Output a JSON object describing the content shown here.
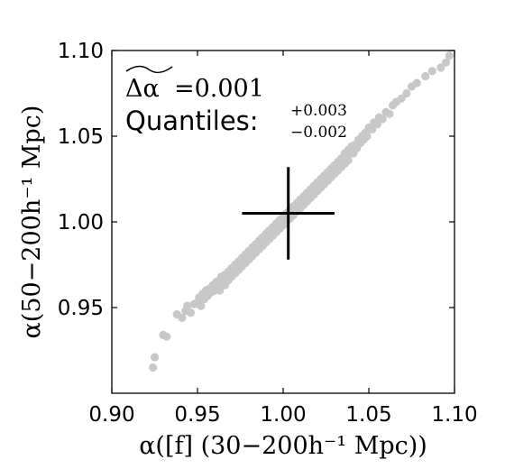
{
  "chart_data": {
    "type": "scatter",
    "xlabel": "α([f]  (30−200h⁻¹ Mpc))",
    "ylabel": "α(50−200h⁻¹ Mpc)",
    "xlim": [
      0.9,
      1.1
    ],
    "ylim": [
      0.9,
      1.1
    ],
    "x_ticks": [
      "0.90",
      "0.95",
      "1.00",
      "1.05",
      "1.10"
    ],
    "y_ticks": [
      "0.95",
      "1.00",
      "1.05",
      "1.10"
    ],
    "grid": false,
    "point_color": "#c8c8c8",
    "cross_color": "#000000",
    "annotation": {
      "line1_symbol": "Δα",
      "line1_value": "=0.001",
      "line2_label": "Quantiles:",
      "line2_upper": "+0.003",
      "line2_lower": "−0.002"
    },
    "cross": {
      "x": 1.003,
      "y": 1.005,
      "x_err_minus": 0.027,
      "x_err_plus": 0.027,
      "y_err_minus": 0.027,
      "y_err_plus": 0.027
    },
    "points": [
      [
        0.924,
        0.915
      ],
      [
        0.925,
        0.921
      ],
      [
        0.93,
        0.934
      ],
      [
        0.932,
        0.933
      ],
      [
        0.938,
        0.946
      ],
      [
        0.941,
        0.944
      ],
      [
        0.943,
        0.948
      ],
      [
        0.944,
        0.951
      ],
      [
        0.946,
        0.947
      ],
      [
        0.948,
        0.952
      ],
      [
        0.95,
        0.953
      ],
      [
        0.951,
        0.956
      ],
      [
        0.952,
        0.951
      ],
      [
        0.953,
        0.958
      ],
      [
        0.954,
        0.955
      ],
      [
        0.955,
        0.96
      ],
      [
        0.956,
        0.957
      ],
      [
        0.957,
        0.961
      ],
      [
        0.958,
        0.959
      ],
      [
        0.959,
        0.963
      ],
      [
        0.96,
        0.96
      ],
      [
        0.961,
        0.965
      ],
      [
        0.962,
        0.962
      ],
      [
        0.963,
        0.966
      ],
      [
        0.963,
        0.96
      ],
      [
        0.964,
        0.968
      ],
      [
        0.965,
        0.964
      ],
      [
        0.966,
        0.969
      ],
      [
        0.966,
        0.963
      ],
      [
        0.967,
        0.967
      ],
      [
        0.968,
        0.971
      ],
      [
        0.968,
        0.966
      ],
      [
        0.969,
        0.97
      ],
      [
        0.97,
        0.973
      ],
      [
        0.97,
        0.968
      ],
      [
        0.971,
        0.972
      ],
      [
        0.972,
        0.975
      ],
      [
        0.972,
        0.97
      ],
      [
        0.973,
        0.974
      ],
      [
        0.974,
        0.977
      ],
      [
        0.974,
        0.972
      ],
      [
        0.975,
        0.976
      ],
      [
        0.976,
        0.979
      ],
      [
        0.976,
        0.974
      ],
      [
        0.977,
        0.978
      ],
      [
        0.978,
        0.981
      ],
      [
        0.978,
        0.976
      ],
      [
        0.979,
        0.98
      ],
      [
        0.98,
        0.983
      ],
      [
        0.98,
        0.978
      ],
      [
        0.981,
        0.982
      ],
      [
        0.982,
        0.985
      ],
      [
        0.982,
        0.98
      ],
      [
        0.983,
        0.984
      ],
      [
        0.984,
        0.987
      ],
      [
        0.984,
        0.982
      ],
      [
        0.985,
        0.986
      ],
      [
        0.986,
        0.989
      ],
      [
        0.986,
        0.984
      ],
      [
        0.987,
        0.988
      ],
      [
        0.988,
        0.991
      ],
      [
        0.988,
        0.986
      ],
      [
        0.989,
        0.99
      ],
      [
        0.99,
        0.993
      ],
      [
        0.99,
        0.988
      ],
      [
        0.991,
        0.992
      ],
      [
        0.992,
        0.995
      ],
      [
        0.992,
        0.99
      ],
      [
        0.993,
        0.994
      ],
      [
        0.994,
        0.997
      ],
      [
        0.994,
        0.992
      ],
      [
        0.995,
        0.996
      ],
      [
        0.996,
        0.999
      ],
      [
        0.996,
        0.994
      ],
      [
        0.997,
        0.998
      ],
      [
        0.998,
        1.001
      ],
      [
        0.998,
        0.996
      ],
      [
        0.999,
        1.0
      ],
      [
        1.0,
        1.003
      ],
      [
        1.0,
        0.998
      ],
      [
        1.001,
        1.002
      ],
      [
        1.002,
        1.005
      ],
      [
        1.002,
        1.0
      ],
      [
        1.003,
        1.004
      ],
      [
        1.004,
        1.007
      ],
      [
        1.004,
        1.002
      ],
      [
        1.005,
        1.006
      ],
      [
        1.006,
        1.009
      ],
      [
        1.006,
        1.004
      ],
      [
        1.007,
        1.008
      ],
      [
        1.008,
        1.011
      ],
      [
        1.008,
        1.006
      ],
      [
        1.009,
        1.01
      ],
      [
        1.01,
        1.013
      ],
      [
        1.01,
        1.008
      ],
      [
        1.011,
        1.012
      ],
      [
        1.012,
        1.015
      ],
      [
        1.012,
        1.01
      ],
      [
        1.013,
        1.014
      ],
      [
        1.014,
        1.017
      ],
      [
        1.014,
        1.012
      ],
      [
        1.015,
        1.016
      ],
      [
        1.016,
        1.019
      ],
      [
        1.016,
        1.014
      ],
      [
        1.017,
        1.018
      ],
      [
        1.018,
        1.021
      ],
      [
        1.018,
        1.016
      ],
      [
        1.019,
        1.02
      ],
      [
        1.02,
        1.023
      ],
      [
        1.02,
        1.018
      ],
      [
        1.021,
        1.022
      ],
      [
        1.022,
        1.025
      ],
      [
        1.022,
        1.02
      ],
      [
        1.023,
        1.024
      ],
      [
        1.024,
        1.027
      ],
      [
        1.024,
        1.022
      ],
      [
        1.025,
        1.026
      ],
      [
        1.026,
        1.029
      ],
      [
        1.026,
        1.024
      ],
      [
        1.027,
        1.028
      ],
      [
        1.028,
        1.031
      ],
      [
        1.028,
        1.026
      ],
      [
        1.029,
        1.03
      ],
      [
        1.03,
        1.033
      ],
      [
        1.03,
        1.028
      ],
      [
        1.031,
        1.032
      ],
      [
        1.032,
        1.035
      ],
      [
        1.032,
        1.03
      ],
      [
        1.033,
        1.034
      ],
      [
        1.034,
        1.037
      ],
      [
        1.034,
        1.032
      ],
      [
        1.035,
        1.036
      ],
      [
        1.036,
        1.04
      ],
      [
        1.036,
        1.034
      ],
      [
        1.037,
        1.038
      ],
      [
        1.038,
        1.042
      ],
      [
        1.038,
        1.036
      ],
      [
        1.039,
        1.041
      ],
      [
        1.04,
        1.044
      ],
      [
        1.041,
        1.04
      ],
      [
        1.042,
        1.045
      ],
      [
        1.043,
        1.043
      ],
      [
        1.044,
        1.048
      ],
      [
        1.045,
        1.046
      ],
      [
        1.046,
        1.05
      ],
      [
        1.047,
        1.048
      ],
      [
        1.048,
        1.052
      ],
      [
        1.049,
        1.05
      ],
      [
        1.05,
        1.055
      ],
      [
        1.052,
        1.054
      ],
      [
        1.053,
        1.058
      ],
      [
        1.055,
        1.057
      ],
      [
        1.056,
        1.061
      ],
      [
        1.058,
        1.06
      ],
      [
        1.06,
        1.064
      ],
      [
        1.062,
        1.063
      ],
      [
        1.064,
        1.068
      ],
      [
        1.066,
        1.07
      ],
      [
        1.069,
        1.072
      ],
      [
        1.072,
        1.075
      ],
      [
        1.075,
        1.079
      ],
      [
        1.078,
        1.081
      ],
      [
        1.083,
        1.085
      ],
      [
        1.087,
        1.088
      ],
      [
        1.092,
        1.09
      ],
      [
        1.095,
        1.093
      ],
      [
        1.097,
        1.097
      ]
    ]
  }
}
